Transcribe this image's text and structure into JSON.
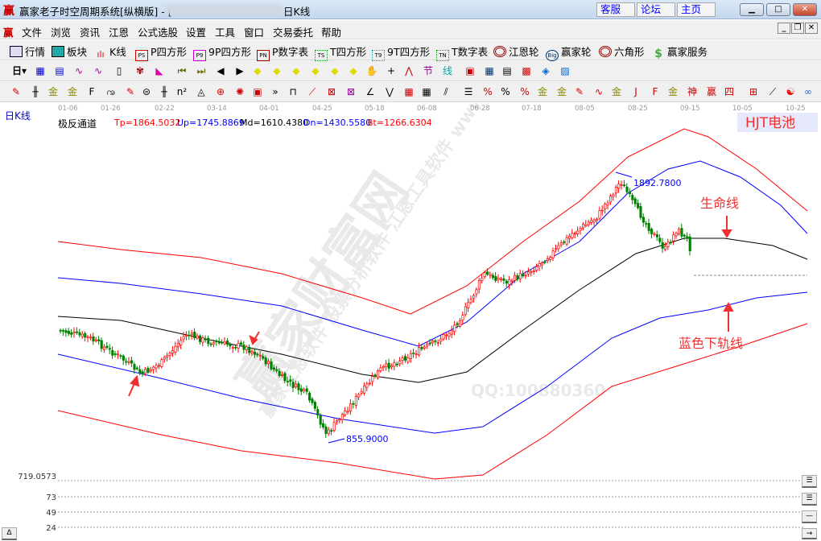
{
  "window": {
    "title": "赢家老子时空周期系统[纵横版] - [",
    "title_suffix": "日K线",
    "links": [
      "客服",
      "论坛",
      "主页"
    ],
    "controls": [
      "minimize",
      "maximize",
      "close"
    ]
  },
  "menu": [
    "文件",
    "浏览",
    "资讯",
    "江恩",
    "公式选股",
    "设置",
    "工具",
    "窗口",
    "交易委托",
    "帮助"
  ],
  "toolbar1": [
    {
      "label": "行情",
      "icon": "quote-table-icon"
    },
    {
      "label": "板块",
      "icon": "sector-grid-icon"
    },
    {
      "label": "K线",
      "icon": "candlestick-icon"
    },
    {
      "label": "P四方形",
      "icon": "PS"
    },
    {
      "label": "9P四方形",
      "icon": "P9"
    },
    {
      "label": "P数字表",
      "icon": "PN"
    },
    {
      "label": "T四方形",
      "icon": "TS"
    },
    {
      "label": "9T四方形",
      "icon": "T9"
    },
    {
      "label": "T数字表",
      "icon": "TN"
    },
    {
      "label": "江恩轮",
      "icon": "gann-wheel-icon"
    },
    {
      "label": "赢家轮",
      "icon": "winner-wheel-icon"
    },
    {
      "label": "六角形",
      "icon": "hexagon-icon"
    },
    {
      "label": "赢家服务",
      "icon": "dollar-icon"
    }
  ],
  "toolbar2": {
    "period": "日"
  },
  "chart": {
    "panel_label": "日K线",
    "dates": [
      "01-06",
      "01-26",
      "02-22",
      "03-14",
      "04-01",
      "04-25",
      "05-18",
      "06-08",
      "06-28",
      "07-18",
      "08-05",
      "08-25",
      "09-15",
      "10-05",
      "10-25"
    ],
    "indicator_name": "极反通道",
    "values": [
      {
        "label": "Tp=1864.5032",
        "color": "#ff0000"
      },
      {
        "label": "Up=1745.8869",
        "color": "#0000ff"
      },
      {
        "label": "Md=1610.4380",
        "color": "#000000"
      },
      {
        "label": "Dn=1430.5580",
        "color": "#0000ff"
      },
      {
        "label": "Bt=1266.6304",
        "color": "#ff0000"
      }
    ],
    "high_label": "1892.7800",
    "low_label": "855.9000",
    "badge": "HJT电池",
    "annotation_life": "生命线",
    "annotation_lower": "蓝色下轨线",
    "watermark_main": "赢家财富网",
    "watermark_sub": "赢家江恩软件 股票分析软件 江恩工具软件 www.yingjia360.com",
    "watermark_qq": "QQ:100880360",
    "up_color": "#ff0000",
    "down_color": "#008000"
  },
  "bottom_axis": [
    "719.0573",
    "73",
    "49",
    "24"
  ]
}
